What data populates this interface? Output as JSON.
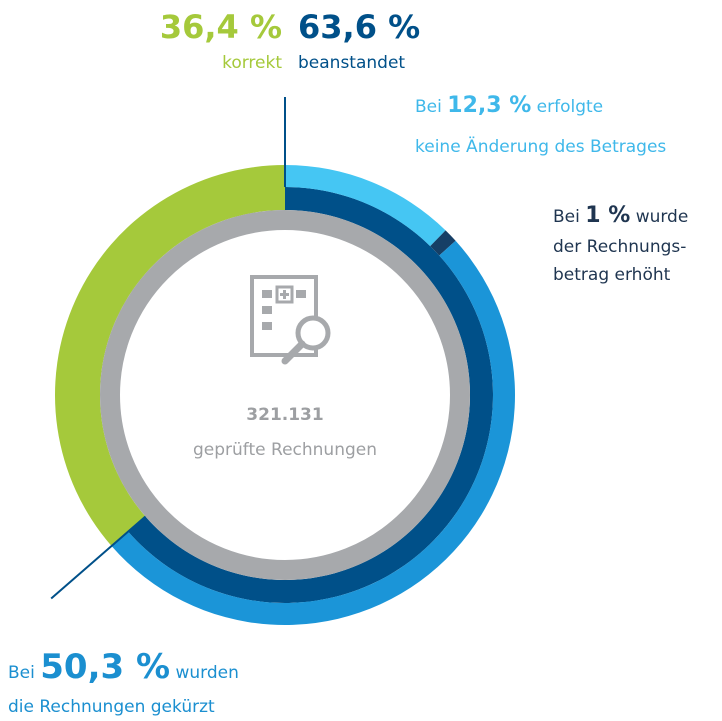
{
  "chart_data": {
    "type": "donut",
    "center_value": "321.131",
    "center_label": "geprüfte Rechnungen",
    "inner": {
      "categories": [
        "korrekt",
        "beanstandet"
      ],
      "values": [
        36.4,
        63.6
      ],
      "value_labels": [
        "36,4 %",
        "63,6 %"
      ],
      "colors": [
        "#a5c93b",
        "#005089"
      ]
    },
    "outer": {
      "values": [
        12.3,
        1,
        50.3
      ],
      "value_labels": [
        "12,3 %",
        "1 %",
        "50,3 %"
      ],
      "colors": [
        "#45c6f3",
        "#163f66",
        "#1b95d8"
      ]
    },
    "annotations": [
      {
        "before": "Bei",
        "after": "erfolgte",
        "lines": [
          "keine Änderung des Betrages"
        ]
      },
      {
        "before": "Bei",
        "after": "wurde",
        "lines": [
          "der Rechnungs-",
          "betrag erhöht"
        ]
      },
      {
        "before": "Bei",
        "after": "wurden",
        "lines": [
          "die Rechnungen gekürzt"
        ]
      }
    ]
  }
}
